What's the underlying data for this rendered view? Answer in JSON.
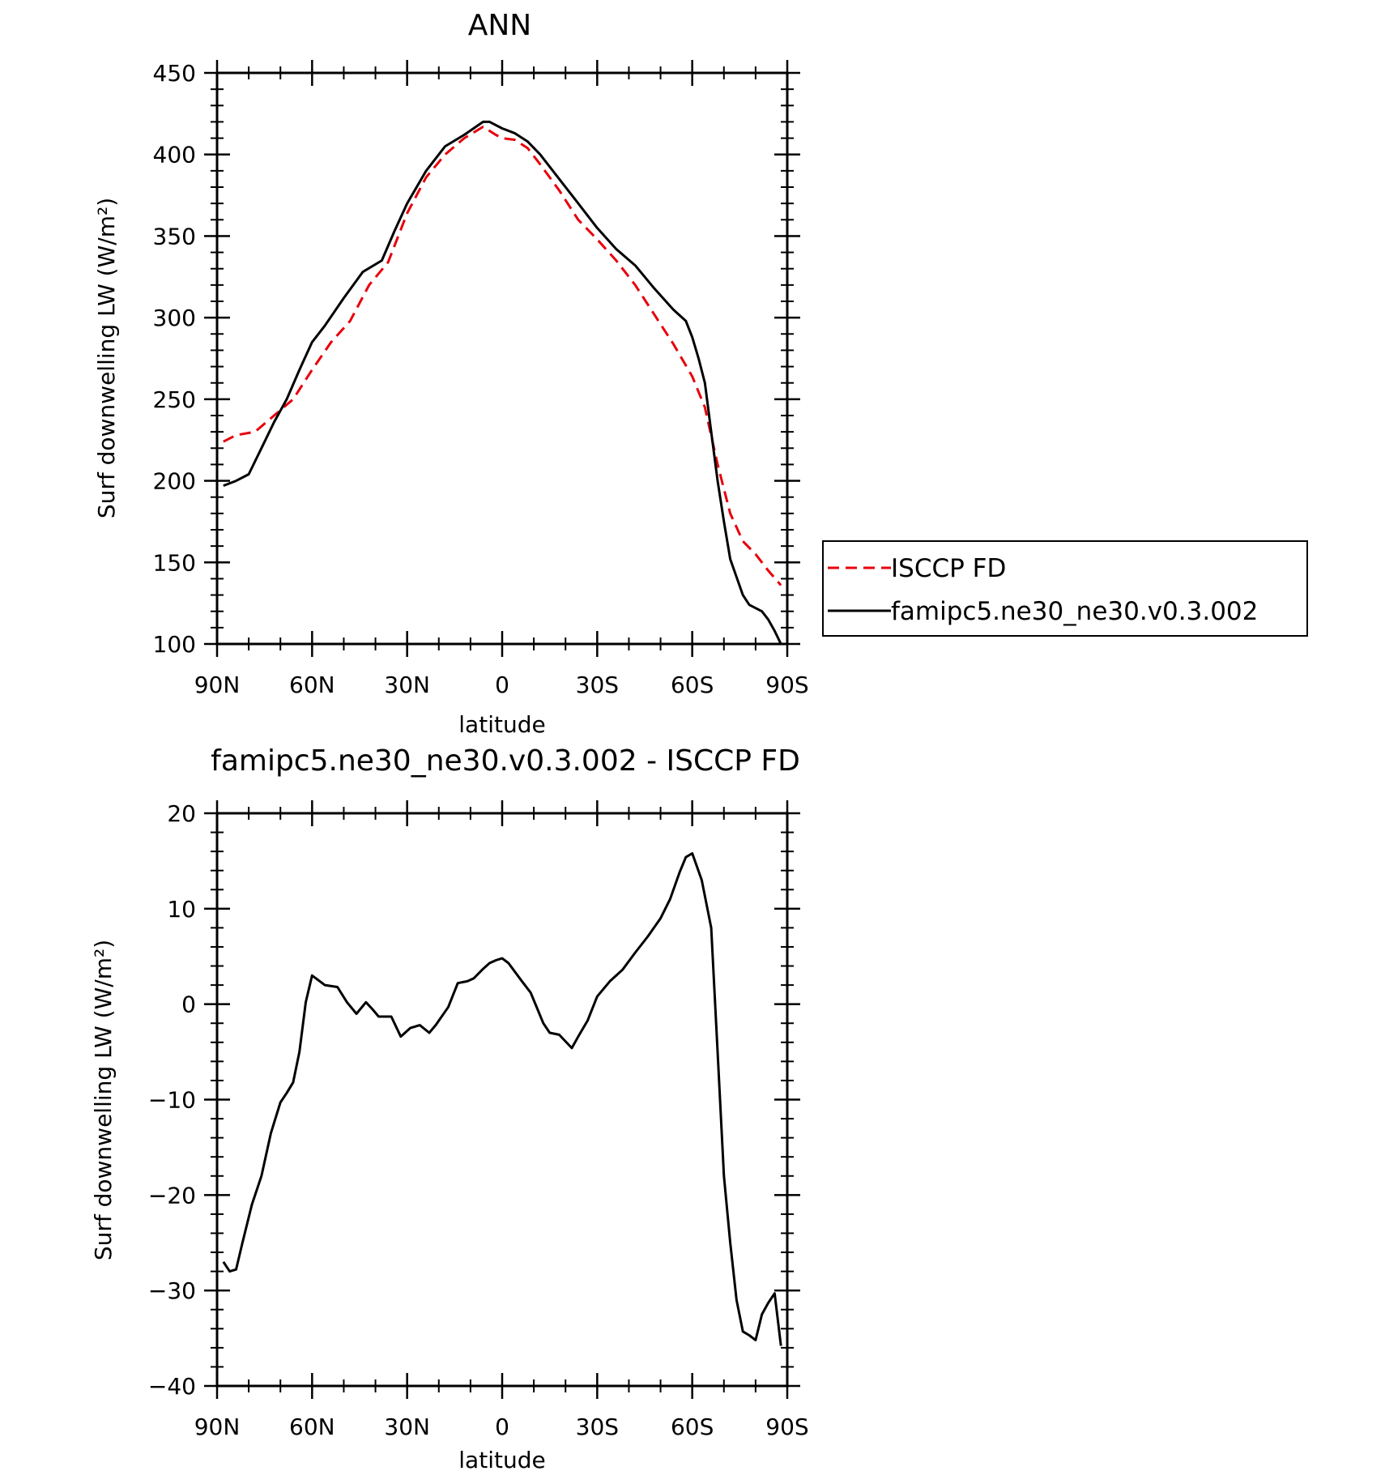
{
  "chart_data": [
    {
      "type": "line",
      "title": "ANN",
      "xlabel": "latitude",
      "ylabel": "Surf downwelling LW (W/m²)",
      "ylim": [
        100,
        450
      ],
      "xlim": [
        90,
        -90
      ],
      "x_ticks": [
        {
          "value": 90,
          "label": "90N"
        },
        {
          "value": 60,
          "label": "60N"
        },
        {
          "value": 30,
          "label": "30N"
        },
        {
          "value": 0,
          "label": "0"
        },
        {
          "value": -30,
          "label": "30S"
        },
        {
          "value": -60,
          "label": "60S"
        },
        {
          "value": -90,
          "label": "90S"
        }
      ],
      "y_ticks": [
        100,
        150,
        200,
        250,
        300,
        350,
        400,
        450
      ],
      "legend_position": "right",
      "series": [
        {
          "name": "ISCCP FD",
          "color": "#e8000b",
          "dash": "dashed",
          "x": [
            88,
            84,
            78,
            72,
            66,
            60,
            54,
            48,
            42,
            36,
            30,
            24,
            18,
            12,
            6,
            2,
            0,
            -4,
            -8,
            -12,
            -18,
            -24,
            -30,
            -36,
            -42,
            -48,
            -54,
            -60,
            -64,
            -68,
            -72,
            -76,
            -80,
            -84,
            -88
          ],
          "y": [
            224,
            228,
            230,
            240,
            250,
            268,
            285,
            298,
            320,
            334,
            364,
            386,
            400,
            410,
            417,
            412,
            410,
            409,
            404,
            394,
            378,
            360,
            348,
            335,
            320,
            302,
            284,
            264,
            245,
            210,
            180,
            163,
            155,
            145,
            136
          ]
        },
        {
          "name": "famipc5.ne30_ne30.v0.3.002",
          "color": "#000000",
          "dash": "solid",
          "x": [
            88,
            84,
            80,
            76,
            72,
            68,
            64,
            60,
            56,
            50,
            44,
            38,
            34,
            30,
            24,
            18,
            12,
            6,
            4,
            0,
            -4,
            -8,
            -12,
            -18,
            -24,
            -30,
            -36,
            -42,
            -48,
            -54,
            -58,
            -60,
            -62,
            -64,
            -66,
            -68,
            -70,
            -72,
            -76,
            -78,
            -82,
            -84,
            -86,
            -88
          ],
          "y": [
            197,
            200,
            204,
            220,
            236,
            250,
            268,
            285,
            295,
            312,
            328,
            335,
            353,
            370,
            390,
            405,
            412,
            420,
            420,
            416,
            413,
            408,
            400,
            385,
            370,
            355,
            342,
            332,
            318,
            305,
            298,
            288,
            275,
            260,
            230,
            200,
            175,
            152,
            130,
            124,
            120,
            115,
            108,
            100
          ]
        }
      ]
    },
    {
      "type": "line",
      "title": "famipc5.ne30_ne30.v0.3.002 - ISCCP FD",
      "xlabel": "latitude",
      "ylabel": "Surf downwelling LW (W/m²)",
      "ylim": [
        -40,
        20
      ],
      "xlim": [
        90,
        -90
      ],
      "x_ticks": [
        {
          "value": 90,
          "label": "90N"
        },
        {
          "value": 60,
          "label": "60N"
        },
        {
          "value": 30,
          "label": "30N"
        },
        {
          "value": 0,
          "label": "0"
        },
        {
          "value": -30,
          "label": "30S"
        },
        {
          "value": -60,
          "label": "60S"
        },
        {
          "value": -90,
          "label": "90S"
        }
      ],
      "y_ticks": [
        -40,
        -30,
        -20,
        -10,
        0,
        10,
        20
      ],
      "series": [
        {
          "name": "",
          "color": "#000000",
          "dash": "solid",
          "x": [
            88,
            86,
            84,
            82,
            79,
            76,
            73,
            70,
            68,
            66,
            64,
            62,
            60,
            58,
            56,
            52,
            49,
            46,
            43,
            41,
            39,
            37,
            35,
            32,
            29,
            26,
            23,
            21,
            17,
            14,
            11,
            9,
            6,
            4,
            2,
            0,
            -2,
            -6,
            -9,
            -13,
            -15,
            -18,
            -22,
            -24,
            -27,
            -30,
            -34,
            -38,
            -42,
            -46,
            -50,
            -53,
            -56,
            -58,
            -60,
            -63,
            -66,
            -68,
            -70,
            -72,
            -74,
            -76,
            -78,
            -80,
            -82,
            -84,
            -86,
            -88
          ],
          "y": [
            -27,
            -28,
            -27.8,
            -25,
            -21,
            -18,
            -13.5,
            -10.3,
            -9.3,
            -8.2,
            -5,
            0.2,
            3,
            2.5,
            2,
            1.8,
            0.2,
            -1,
            0.2,
            -0.5,
            -1.3,
            -1.3,
            -1.3,
            -3.4,
            -2.5,
            -2.2,
            -3,
            -2.2,
            -0.3,
            2.2,
            2.4,
            2.7,
            3.7,
            4.3,
            4.6,
            4.8,
            4.3,
            2.5,
            1.2,
            -2,
            -3,
            -3.2,
            -4.6,
            -3.4,
            -1.7,
            0.8,
            2.4,
            3.6,
            5.4,
            7.1,
            9,
            11,
            13.8,
            15.4,
            15.8,
            13,
            8,
            -5,
            -18,
            -25,
            -31,
            -34.3,
            -34.7,
            -35.2,
            -32.5,
            -31.3,
            -30.3,
            -35.8
          ]
        }
      ]
    }
  ]
}
